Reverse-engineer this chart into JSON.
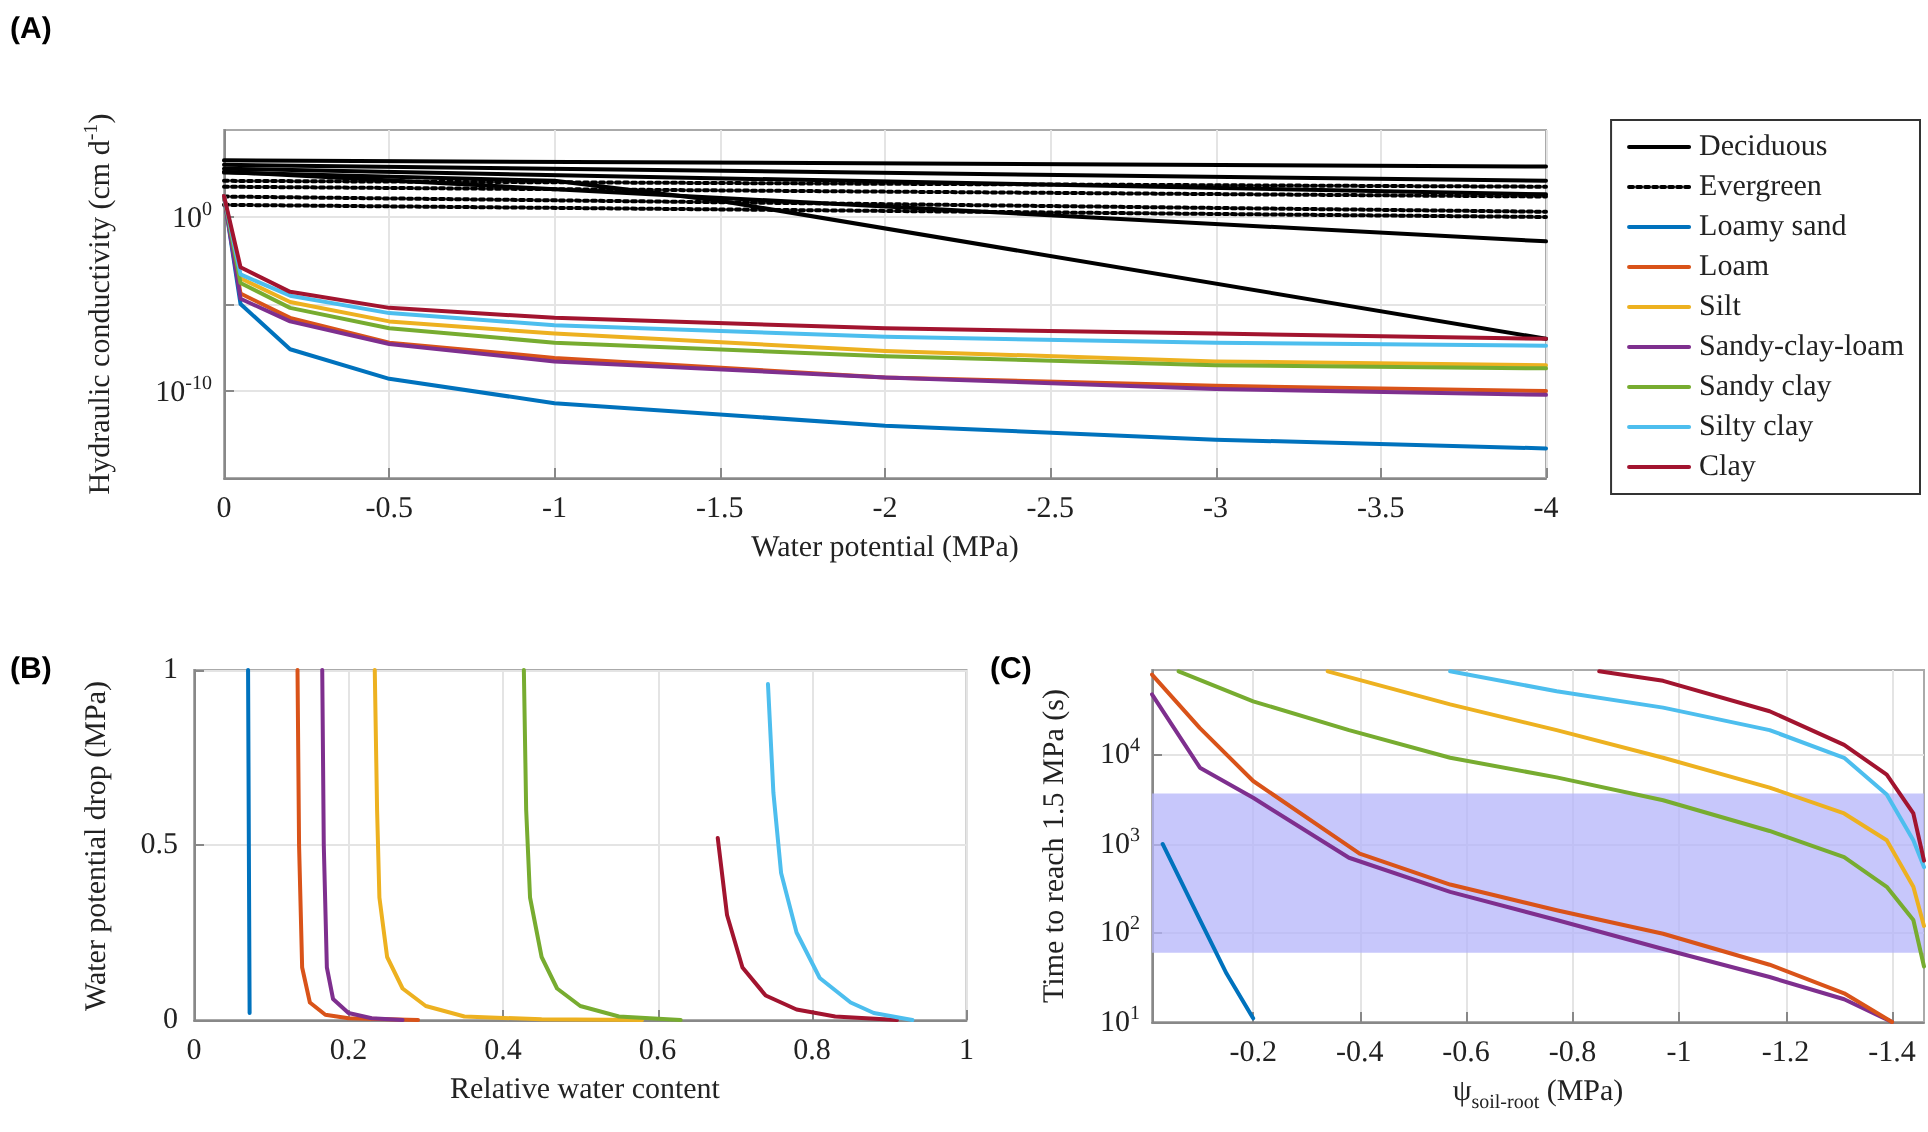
{
  "chart_data": [
    {
      "type": "line",
      "title": "(A)",
      "xlabel": "Water potential (MPa)",
      "ylabel": "Hydraulic conductivity (cm d$^{-1}$)",
      "log": "y",
      "grid": true,
      "legend": "right",
      "marker": "none",
      "xlim": [
        0,
        -4
      ],
      "xticks": [
        0,
        -0.5,
        -1,
        -1.5,
        -2,
        -2.5,
        -3,
        -3.5,
        -4
      ],
      "ylim": [
        1e-15,
        100000
      ],
      "yticks": [
        {
          "value": 1e-10,
          "label": "10$^{-10}$"
        },
        {
          "value": 1e-05,
          "label": null
        },
        {
          "value": 1,
          "label": "10$^{0}$"
        }
      ],
      "series": [
        {
          "name": "Deciduous",
          "color": "#000000",
          "line_style": "solid",
          "x": [
            0,
            -4
          ],
          "values": [
            1800,
            800
          ]
        },
        {
          "color": "#000000",
          "line_style": "solid",
          "x": [
            0,
            -4
          ],
          "values": [
            1000,
            120
          ]
        },
        {
          "color": "#000000",
          "line_style": "solid",
          "x": [
            0,
            -4
          ],
          "values": [
            600,
            20
          ]
        },
        {
          "color": "#000000",
          "line_style": "solid",
          "x": [
            0,
            -4
          ],
          "values": [
            400,
            0.04
          ]
        },
        {
          "color": "#000000",
          "line_style": "solid",
          "x": [
            0,
            -1,
            -1.5,
            -4
          ],
          "values": [
            360,
            120,
            8.5,
            1e-07
          ]
        },
        {
          "name": "Evergreen",
          "color": "#000000",
          "line_style": "dotted",
          "x": [
            0,
            -4
          ],
          "values": [
            120,
            55
          ]
        },
        {
          "color": "#000000",
          "line_style": "dotted",
          "x": [
            0,
            -4
          ],
          "values": [
            55,
            15
          ]
        },
        {
          "color": "#000000",
          "line_style": "dotted",
          "x": [
            0,
            -4
          ],
          "values": [
            15,
            2
          ]
        },
        {
          "color": "#000000",
          "line_style": "dotted",
          "x": [
            0,
            -4
          ],
          "values": [
            5,
            1
          ]
        },
        {
          "name": "Loamy sand",
          "color": "#0072bd",
          "x": [
            0,
            -0.05,
            -0.2,
            -0.5,
            -1,
            -2,
            -3,
            -4
          ],
          "values": [
            16,
            1e-05,
            2.5e-08,
            5e-10,
            2e-11,
            1e-12,
            1.6e-13,
            5e-14
          ]
        },
        {
          "name": "Loam",
          "color": "#d95319",
          "x": [
            0,
            -0.05,
            -0.2,
            -0.5,
            -1,
            -2,
            -3,
            -4
          ],
          "values": [
            16,
            4e-05,
            1.6e-06,
            6e-08,
            8e-09,
            6e-10,
            2e-10,
            1e-10
          ]
        },
        {
          "name": "Silt",
          "color": "#edb120",
          "x": [
            0,
            -0.05,
            -0.2,
            -0.5,
            -1,
            -2,
            -3,
            -4
          ],
          "values": [
            16,
            0.0003,
            1.3e-05,
            1e-06,
            2e-07,
            2e-08,
            5e-09,
            3e-09
          ]
        },
        {
          "name": "Sandy-clay-loam",
          "color": "#7e2f8e",
          "x": [
            0,
            -0.05,
            -0.2,
            -0.5,
            -1,
            -2,
            -3,
            -4
          ],
          "values": [
            16,
            2e-05,
            1e-06,
            5e-08,
            5e-09,
            6e-10,
            1.3e-10,
            6e-11
          ]
        },
        {
          "name": "Sandy clay",
          "color": "#77ac30",
          "x": [
            0,
            -0.05,
            -0.2,
            -0.5,
            -1,
            -2,
            -3,
            -4
          ],
          "values": [
            16,
            0.00016,
            6e-06,
            4e-07,
            6e-08,
            1e-08,
            3e-09,
            2e-09
          ]
        },
        {
          "name": "Silty clay",
          "color": "#4dbeee",
          "x": [
            0,
            -0.05,
            -0.2,
            -0.5,
            -1,
            -2,
            -3,
            -4
          ],
          "values": [
            16,
            0.0005,
            3e-05,
            3e-06,
            6e-07,
            1.3e-07,
            6e-08,
            4e-08
          ]
        },
        {
          "name": "Clay",
          "color": "#a2142f",
          "x": [
            0,
            -0.05,
            -0.2,
            -0.5,
            -1,
            -2,
            -3,
            -4
          ],
          "values": [
            16,
            0.0013,
            5e-05,
            6e-06,
            1.6e-06,
            4e-07,
            2e-07,
            1e-07
          ]
        }
      ]
    },
    {
      "type": "line",
      "title": "(B)",
      "xlabel": "Relative water content",
      "ylabel": "Water potential drop (MPa)",
      "grid": true,
      "marker": "none",
      "xlim": [
        0,
        1
      ],
      "xticks": [
        0,
        0.2,
        0.4,
        0.6,
        0.8,
        1
      ],
      "ylim": [
        0,
        1
      ],
      "yticks": [
        0,
        0.5,
        1
      ],
      "series": [
        {
          "color": "#0072bd",
          "x": [
            0.07,
            0.071,
            0.072
          ],
          "values": [
            1,
            0.5,
            0.02
          ]
        },
        {
          "color": "#d95319",
          "x": [
            0.134,
            0.136,
            0.14,
            0.15,
            0.17,
            0.2,
            0.29
          ],
          "values": [
            1,
            0.5,
            0.15,
            0.05,
            0.015,
            0.005,
            0
          ]
        },
        {
          "color": "#7e2f8e",
          "x": [
            0.166,
            0.168,
            0.172,
            0.18,
            0.2,
            0.23,
            0.27
          ],
          "values": [
            1,
            0.5,
            0.15,
            0.06,
            0.02,
            0.005,
            0
          ]
        },
        {
          "color": "#edb120",
          "x": [
            0.234,
            0.237,
            0.24,
            0.25,
            0.27,
            0.3,
            0.35,
            0.45,
            0.58
          ],
          "values": [
            1,
            0.6,
            0.35,
            0.18,
            0.09,
            0.04,
            0.01,
            0.002,
            0
          ]
        },
        {
          "color": "#77ac30",
          "x": [
            0.427,
            0.43,
            0.435,
            0.45,
            0.47,
            0.5,
            0.55,
            0.63
          ],
          "values": [
            1,
            0.6,
            0.35,
            0.18,
            0.09,
            0.04,
            0.01,
            0
          ]
        },
        {
          "color": "#a2142f",
          "x": [
            0.678,
            0.69,
            0.71,
            0.74,
            0.78,
            0.83,
            0.91
          ],
          "values": [
            0.52,
            0.3,
            0.15,
            0.07,
            0.03,
            0.01,
            0
          ]
        },
        {
          "color": "#4dbeee",
          "x": [
            0.743,
            0.75,
            0.76,
            0.78,
            0.81,
            0.85,
            0.88,
            0.93
          ],
          "values": [
            0.96,
            0.65,
            0.42,
            0.25,
            0.12,
            0.05,
            0.02,
            0
          ]
        }
      ]
    },
    {
      "type": "line",
      "title": "(C)",
      "xlabel": "ψ$_{soil-root}$ (MPa)",
      "ylabel": "Time to reach 1.5 MPa (s)",
      "log": "y",
      "grid": true,
      "marker": "none",
      "xlim": [
        -0.01,
        -1.46
      ],
      "xticks": [
        -0.2,
        -0.4,
        -0.6,
        -0.8,
        -1,
        -1.2,
        -1.4
      ],
      "ylim": [
        10,
        90000
      ],
      "yticks": [
        {
          "value": 10,
          "label": "10$^{1}$"
        },
        {
          "value": 100,
          "label": "10$^{2}$"
        },
        {
          "value": 1000,
          "label": "10$^{3}$"
        },
        {
          "value": 10000,
          "label": "10$^{4}$"
        }
      ],
      "bands": [
        {
          "axis": "y",
          "from": 60,
          "to": 3700,
          "color": "#b4b4fa"
        }
      ],
      "series": [
        {
          "color": "#0072bd",
          "x": [
            -0.03,
            -0.1,
            -0.15,
            -0.2
          ],
          "values": [
            1000,
            140,
            35,
            11
          ]
        },
        {
          "color": "#7e2f8e",
          "x": [
            -0.01,
            -0.1,
            -0.2,
            -0.38,
            -0.57,
            -0.77,
            -0.97,
            -1.17,
            -1.31,
            -1.4
          ],
          "values": [
            48000,
            7200,
            3300,
            700,
            290,
            140,
            66,
            32,
            18,
            10
          ]
        },
        {
          "color": "#d95319",
          "x": [
            -0.01,
            -0.1,
            -0.2,
            -0.4,
            -0.57,
            -0.77,
            -0.97,
            -1.17,
            -1.31,
            -1.4
          ],
          "values": [
            80000,
            20000,
            5100,
            780,
            350,
            180,
            98,
            44,
            21,
            10
          ]
        },
        {
          "color": "#77ac30",
          "x": [
            -0.06,
            -0.2,
            -0.38,
            -0.57,
            -0.77,
            -0.97,
            -1.17,
            -1.31,
            -1.39,
            -1.44,
            -1.46
          ],
          "values": [
            87000,
            40000,
            19000,
            9300,
            5600,
            3100,
            1400,
            710,
            330,
            140,
            42
          ]
        },
        {
          "color": "#edb120",
          "x": [
            -0.34,
            -0.57,
            -0.77,
            -0.97,
            -1.17,
            -1.31,
            -1.39,
            -1.44,
            -1.46
          ],
          "values": [
            87000,
            37000,
            19000,
            9300,
            4300,
            2200,
            1100,
            330,
            120
          ]
        },
        {
          "color": "#4dbeee",
          "x": [
            -0.57,
            -0.77,
            -0.97,
            -1.17,
            -1.31,
            -1.39,
            -1.44,
            -1.46
          ],
          "values": [
            87000,
            52000,
            34000,
            19000,
            9300,
            3600,
            1100,
            550
          ]
        },
        {
          "color": "#a2142f",
          "x": [
            -0.85,
            -0.97,
            -1.17,
            -1.31,
            -1.39,
            -1.44,
            -1.46
          ],
          "values": [
            87000,
            68000,
            31000,
            13000,
            6000,
            2200,
            650
          ]
        }
      ]
    }
  ]
}
